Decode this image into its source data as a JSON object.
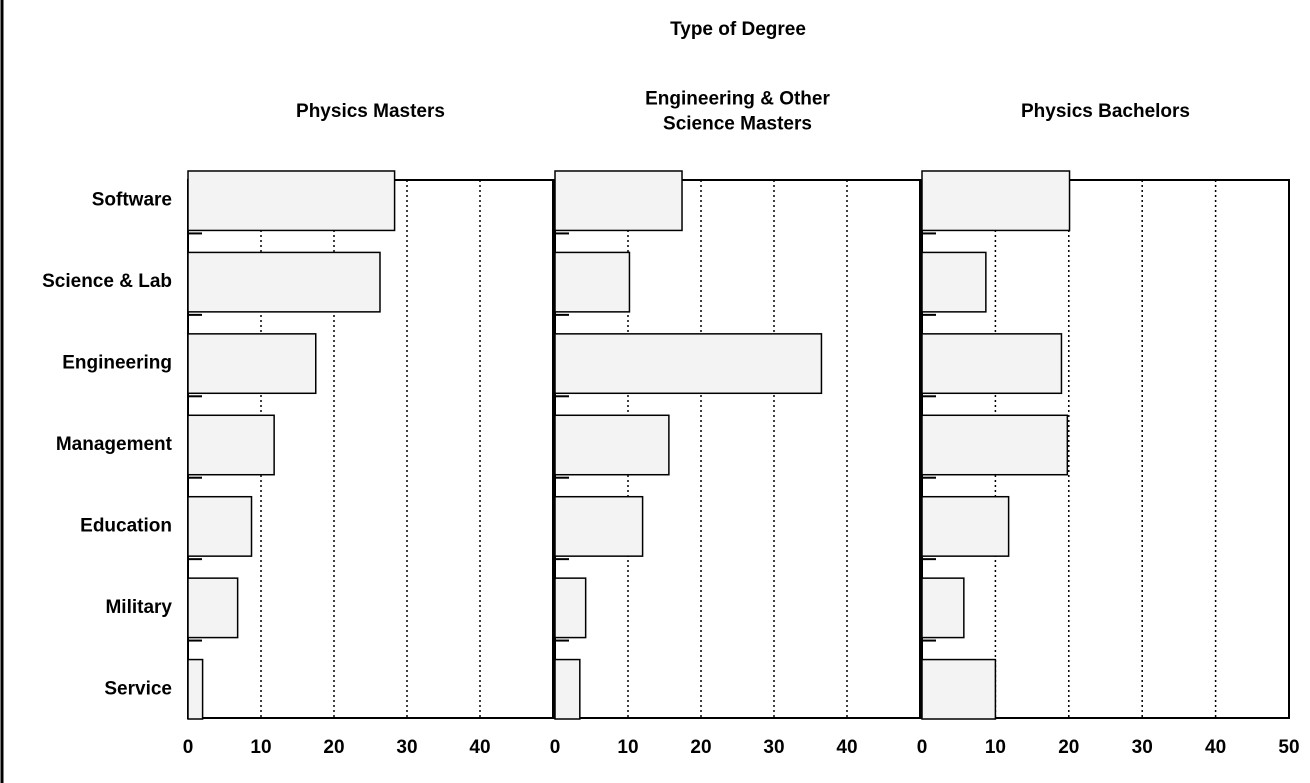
{
  "title": "Type of Degree",
  "categories": [
    "Software",
    "Science & Lab",
    "Engineering",
    "Management",
    "Education",
    "Military",
    "Service"
  ],
  "chart_data": [
    {
      "type": "bar",
      "horizontal": true,
      "title": [
        "Physics Masters"
      ],
      "values": [
        28.3,
        26.3,
        17.5,
        11.8,
        8.7,
        6.8,
        2
      ],
      "xlim": [
        0,
        50
      ],
      "xticks": [
        0,
        10,
        20,
        30,
        40
      ],
      "grid": true,
      "color": "#f3f3f3"
    },
    {
      "type": "bar",
      "horizontal": true,
      "title": [
        "Engineering & Other",
        "Science Masters"
      ],
      "values": [
        17.4,
        10.2,
        36.5,
        15.6,
        12,
        4.2,
        3.4
      ],
      "xlim": [
        0,
        50
      ],
      "xticks": [
        0,
        10,
        20,
        30,
        40
      ],
      "grid": true,
      "color": "#f3f3f3"
    },
    {
      "type": "bar",
      "horizontal": true,
      "title": [
        "Physics Bachelors"
      ],
      "values": [
        20.1,
        8.7,
        19,
        19.8,
        11.8,
        5.7,
        10
      ],
      "xlim": [
        0,
        50
      ],
      "xticks": [
        0,
        10,
        20,
        30,
        40,
        50
      ],
      "grid": true,
      "color": "#f3f3f3"
    }
  ]
}
